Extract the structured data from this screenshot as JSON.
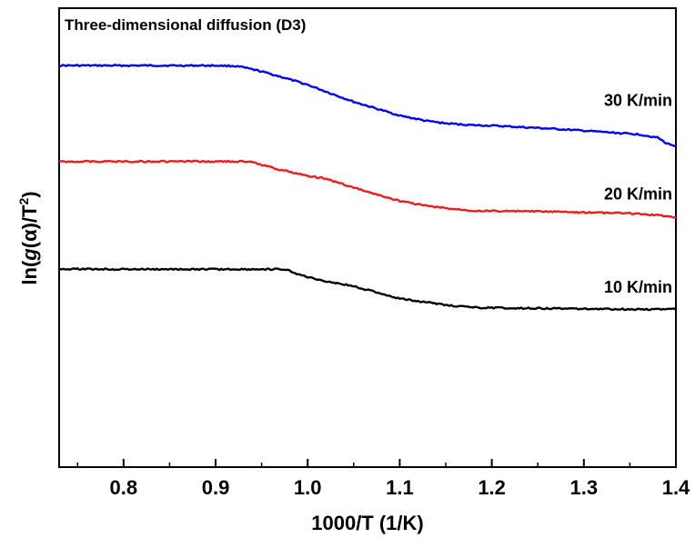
{
  "chart_data": {
    "type": "line",
    "title": "Three-dimensional diffusion (D3)",
    "xlabel": "1000/T (1/K)",
    "ylabel": "ln(g(α)/T²)",
    "ylabel_parts": {
      "prefix": "ln(",
      "g": "g",
      "alpha": "(α)/T",
      "sup": "2",
      "suffix": ")"
    },
    "xlim": [
      0.73,
      1.4
    ],
    "ylim": [
      0,
      1
    ],
    "y_ticks_shown": false,
    "x_ticks": [
      "0.8",
      "0.9",
      "1.0",
      "1.1",
      "1.2",
      "1.3",
      "1.4"
    ],
    "grid": false,
    "series": [
      {
        "name": "30 K/min",
        "color": "#0000ff",
        "x": [
          0.73,
          0.8,
          0.85,
          0.9,
          0.92,
          0.93,
          0.95,
          0.97,
          1.0,
          1.02,
          1.05,
          1.08,
          1.1,
          1.13,
          1.15,
          1.18,
          1.2,
          1.25,
          1.3,
          1.33,
          1.36,
          1.38,
          1.39,
          1.4
        ],
        "y": [
          0.875,
          0.875,
          0.875,
          0.875,
          0.874,
          0.871,
          0.862,
          0.851,
          0.833,
          0.818,
          0.796,
          0.778,
          0.766,
          0.754,
          0.749,
          0.745,
          0.744,
          0.739,
          0.733,
          0.729,
          0.725,
          0.718,
          0.705,
          0.7
        ]
      },
      {
        "name": "20 K/min",
        "color": "#ee1c1c",
        "x": [
          0.73,
          0.8,
          0.85,
          0.9,
          0.93,
          0.94,
          0.95,
          0.97,
          1.0,
          1.02,
          1.05,
          1.08,
          1.1,
          1.13,
          1.15,
          1.18,
          1.2,
          1.25,
          1.3,
          1.35,
          1.38,
          1.4
        ],
        "y": [
          0.666,
          0.666,
          0.666,
          0.666,
          0.666,
          0.664,
          0.659,
          0.648,
          0.635,
          0.628,
          0.609,
          0.591,
          0.58,
          0.569,
          0.564,
          0.559,
          0.558,
          0.557,
          0.555,
          0.553,
          0.549,
          0.545
        ]
      },
      {
        "name": "10 K/min",
        "color": "#000000",
        "x": [
          0.73,
          0.8,
          0.85,
          0.9,
          0.95,
          0.97,
          0.98,
          0.99,
          1.0,
          1.02,
          1.05,
          1.08,
          1.1,
          1.13,
          1.15,
          1.18,
          1.2,
          1.25,
          1.3,
          1.35,
          1.4
        ],
        "y": [
          0.432,
          0.431,
          0.431,
          0.431,
          0.431,
          0.431,
          0.428,
          0.42,
          0.414,
          0.405,
          0.394,
          0.378,
          0.367,
          0.359,
          0.353,
          0.348,
          0.347,
          0.346,
          0.345,
          0.344,
          0.344
        ]
      }
    ],
    "series_labels": [
      "30 K/min",
      "20 K/min",
      "10 K/min"
    ],
    "series_label_y": [
      0.787,
      0.583,
      0.38
    ]
  }
}
